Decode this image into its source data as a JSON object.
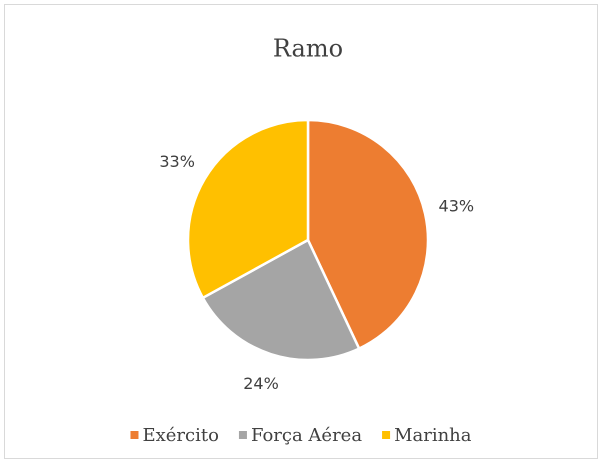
{
  "chart_data": {
    "type": "pie",
    "title": "Ramo",
    "categories": [
      "Exército",
      "Força Aérea",
      "Marinha"
    ],
    "values": [
      43,
      24,
      33
    ],
    "value_labels": [
      "43%",
      "24%",
      "33%"
    ],
    "colors": [
      "#ED7D31",
      "#A5A5A5",
      "#FFC000"
    ],
    "legend": "bottom"
  }
}
